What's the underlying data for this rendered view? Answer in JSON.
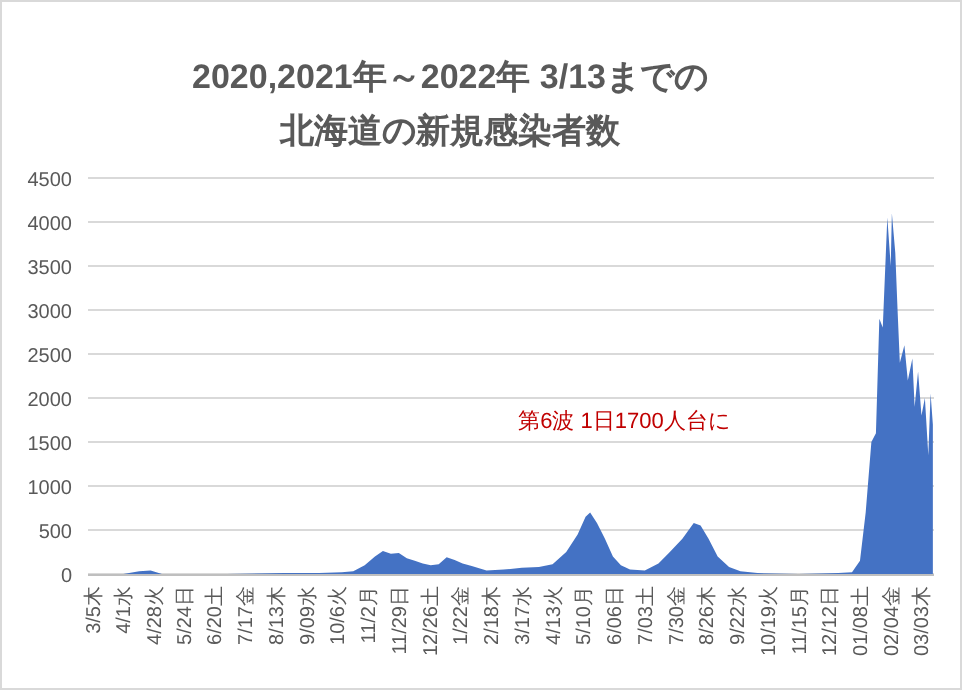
{
  "chart_data": {
    "type": "area",
    "title": "2020,2021年～2022年 3/13までの",
    "subtitle": "北海道の新規感染者数",
    "annotations": [
      "第6波 1日1700人台に"
    ],
    "x": [
      "2020-03-05",
      "2020-04-01",
      "2020-04-15",
      "2020-04-25",
      "2020-05-05",
      "2020-06-01",
      "2020-07-01",
      "2020-08-20",
      "2020-09-20",
      "2020-10-10",
      "2020-10-20",
      "2020-10-30",
      "2020-11-08",
      "2020-11-15",
      "2020-11-22",
      "2020-11-29",
      "2020-12-06",
      "2020-12-13",
      "2020-12-20",
      "2020-12-27",
      "2021-01-03",
      "2021-01-10",
      "2021-01-17",
      "2021-01-24",
      "2021-02-01",
      "2021-02-14",
      "2021-03-01",
      "2021-03-17",
      "2021-04-01",
      "2021-04-13",
      "2021-04-25",
      "2021-05-05",
      "2021-05-12",
      "2021-05-16",
      "2021-05-22",
      "2021-05-29",
      "2021-06-05",
      "2021-06-12",
      "2021-06-20",
      "2021-07-03",
      "2021-07-15",
      "2021-07-25",
      "2021-08-05",
      "2021-08-15",
      "2021-08-21",
      "2021-08-28",
      "2021-09-05",
      "2021-09-15",
      "2021-09-25",
      "2021-10-10",
      "2021-11-15",
      "2021-12-20",
      "2022-01-01",
      "2022-01-08",
      "2022-01-13",
      "2022-01-18",
      "2022-01-22",
      "2022-01-25",
      "2022-01-28",
      "2022-02-01",
      "2022-02-04",
      "2022-02-05",
      "2022-02-08",
      "2022-02-10",
      "2022-02-12",
      "2022-02-16",
      "2022-02-19",
      "2022-02-23",
      "2022-02-25",
      "2022-02-28",
      "2022-03-03",
      "2022-03-06",
      "2022-03-09",
      "2022-03-11",
      "2022-03-13"
    ],
    "series": [
      {
        "color": "#4472c4",
        "values": [
          0,
          0,
          30,
          40,
          0,
          0,
          0,
          10,
          10,
          20,
          30,
          100,
          200,
          260,
          230,
          240,
          180,
          150,
          120,
          100,
          110,
          190,
          160,
          120,
          90,
          40,
          50,
          70,
          80,
          110,
          250,
          450,
          650,
          700,
          580,
          400,
          200,
          100,
          50,
          40,
          120,
          250,
          400,
          580,
          550,
          400,
          200,
          80,
          30,
          10,
          0,
          10,
          20,
          150,
          700,
          1500,
          1600,
          2900,
          2800,
          4050,
          3500,
          4100,
          3650,
          3000,
          2400,
          2600,
          2200,
          2450,
          1900,
          2300,
          1800,
          2000,
          1350,
          2050,
          1700
        ]
      }
    ],
    "xlim": [
      "2020-03-01",
      "2022-03-14"
    ],
    "xticks": [
      {
        "value": "2020-03-05",
        "label": "3/5木"
      },
      {
        "value": "2020-04-01",
        "label": "4/1水"
      },
      {
        "value": "2020-04-28",
        "label": "4/28火"
      },
      {
        "value": "2020-05-24",
        "label": "5/24日"
      },
      {
        "value": "2020-06-20",
        "label": "6/20土"
      },
      {
        "value": "2020-07-17",
        "label": "7/17金"
      },
      {
        "value": "2020-08-13",
        "label": "8/13木"
      },
      {
        "value": "2020-09-09",
        "label": "9/09水"
      },
      {
        "value": "2020-10-06",
        "label": "10/6火"
      },
      {
        "value": "2020-11-02",
        "label": "11/2月"
      },
      {
        "value": "2020-11-29",
        "label": "11/29日"
      },
      {
        "value": "2020-12-26",
        "label": "12/26土"
      },
      {
        "value": "2021-01-22",
        "label": "1/22金"
      },
      {
        "value": "2021-02-18",
        "label": "2/18木"
      },
      {
        "value": "2021-03-17",
        "label": "3/17水"
      },
      {
        "value": "2021-04-13",
        "label": "4/13火"
      },
      {
        "value": "2021-05-10",
        "label": "5/10月"
      },
      {
        "value": "2021-06-06",
        "label": "6/06日"
      },
      {
        "value": "2021-07-03",
        "label": "7/03土"
      },
      {
        "value": "2021-07-30",
        "label": "7/30金"
      },
      {
        "value": "2021-08-26",
        "label": "8/26木"
      },
      {
        "value": "2021-09-22",
        "label": "9/22水"
      },
      {
        "value": "2021-10-19",
        "label": "10/19火"
      },
      {
        "value": "2021-11-15",
        "label": "11/15月"
      },
      {
        "value": "2021-12-12",
        "label": "12/12日"
      },
      {
        "value": "2022-01-08",
        "label": "01/08土"
      },
      {
        "value": "2022-02-04",
        "label": "02/04金"
      },
      {
        "value": "2022-03-03",
        "label": "03/03木"
      }
    ],
    "ylim": [
      0,
      4500
    ],
    "yticks": [
      0,
      500,
      1000,
      1500,
      2000,
      2500,
      3000,
      3500,
      4000,
      4500
    ],
    "grid": "y"
  }
}
